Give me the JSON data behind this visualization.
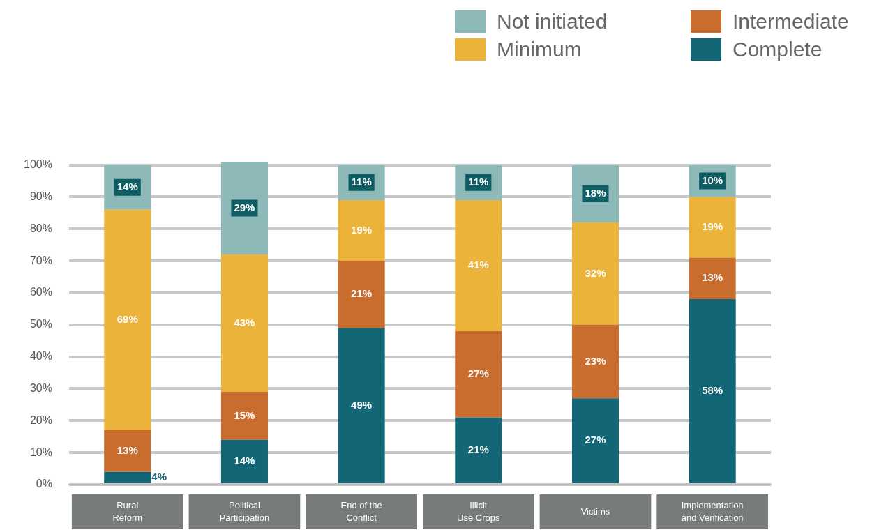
{
  "chart_data": {
    "type": "bar",
    "stacked": true,
    "legend": "top right",
    "grid": "y",
    "categories": [
      "Rural\nReform",
      "Political\nParticipation",
      "End of the\nConflict",
      "Illicit\nUse Crops",
      "Victims",
      "Implementation\nand Verification"
    ],
    "series": [
      {
        "name": "Complete",
        "color": "#136675",
        "values": [
          4,
          14,
          49,
          21,
          27,
          58
        ],
        "value_labels": [
          "4%",
          "14%",
          "49%",
          "21%",
          "27%",
          "58%"
        ]
      },
      {
        "name": "Intermediate",
        "color": "#c96d2e",
        "values": [
          13,
          15,
          21,
          27,
          23,
          13
        ],
        "value_labels": [
          "13%",
          "15%",
          "21%",
          "27%",
          "23%",
          "13%"
        ]
      },
      {
        "name": "Minimum",
        "color": "#ebb33a",
        "values": [
          69,
          43,
          19,
          41,
          32,
          19
        ],
        "value_labels": [
          "69%",
          "43%",
          "19%",
          "41%",
          "32%",
          "19%"
        ]
      },
      {
        "name": "Not initiated",
        "color": "#8dbab8",
        "values": [
          14,
          29,
          11,
          11,
          18,
          10
        ],
        "value_labels": [
          "14%",
          "29%",
          "11%",
          "11%",
          "18%",
          "10%"
        ]
      }
    ],
    "ylim": [
      0,
      101
    ],
    "yticks": [
      {
        "value": 0,
        "label": "0%"
      },
      {
        "value": 10,
        "label": "10%"
      },
      {
        "value": 20,
        "label": "20%"
      },
      {
        "value": 30,
        "label": "30%"
      },
      {
        "value": 40,
        "label": "40%"
      },
      {
        "value": 50,
        "label": "50%"
      },
      {
        "value": 60,
        "label": "60%"
      },
      {
        "value": 70,
        "label": "70%"
      },
      {
        "value": 80,
        "label": "80%"
      },
      {
        "value": 90,
        "label": "90%"
      },
      {
        "value": 100,
        "label": "100%"
      }
    ]
  }
}
